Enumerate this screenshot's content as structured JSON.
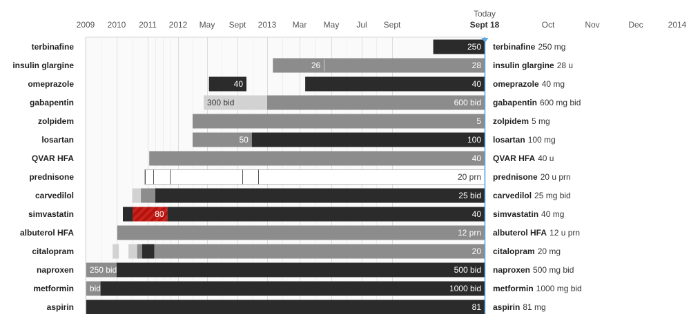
{
  "chart_data": {
    "type": "bar",
    "today": {
      "top_label": "Today",
      "date_label": "Sept 18"
    },
    "x_ticks": [
      "2009",
      "2010",
      "2011",
      "2012",
      "May",
      "Sept",
      "2013",
      "Mar",
      "May",
      "Jul",
      "Sept",
      "Oct",
      "Nov",
      "Dec",
      "2014"
    ],
    "colors": {
      "dark": "#2b2b2b",
      "mid": "#8c8c8c",
      "light": "#d2d2d2",
      "alert": "#b3120f",
      "today_line": "#5aa9e6"
    },
    "medications": [
      {
        "name": "terbinafine",
        "current_dose": "250 mg",
        "segments": [
          {
            "start": 2013.69,
            "end": 2013.715,
            "shade": "dark",
            "label": "250"
          }
        ]
      },
      {
        "name": "insulin glargine",
        "current_dose": "28 u",
        "segments": [
          {
            "start": 2013.03,
            "end": 2013.3,
            "shade": "mid",
            "label": "26"
          },
          {
            "start": 2013.3,
            "end": 2013.715,
            "shade": "mid",
            "label": "28"
          }
        ]
      },
      {
        "name": "omeprazole",
        "current_dose": "40 mg",
        "segments": [
          {
            "start": 2012.36,
            "end": 2012.77,
            "shade": "dark",
            "label": "40"
          },
          {
            "start": 2013.2,
            "end": 2013.715,
            "shade": "dark",
            "label": "40"
          }
        ]
      },
      {
        "name": "gabapentin",
        "current_dose": "600 mg bid",
        "segments": [
          {
            "start": 2012.3,
            "end": 2012.65,
            "shade": "light",
            "label": "300 bid"
          },
          {
            "start": 2012.65,
            "end": 2013.0,
            "shade": "light",
            "label": ""
          },
          {
            "start": 2013.0,
            "end": 2013.715,
            "shade": "mid",
            "label": "600 bid"
          }
        ]
      },
      {
        "name": "zolpidem",
        "current_dose": "5 mg",
        "segments": [
          {
            "start": 2012.17,
            "end": 2013.715,
            "shade": "mid",
            "label": "5"
          }
        ]
      },
      {
        "name": "losartan",
        "current_dose": "100 mg",
        "segments": [
          {
            "start": 2012.17,
            "end": 2012.83,
            "shade": "mid",
            "label": "50"
          },
          {
            "start": 2012.83,
            "end": 2013.715,
            "shade": "dark",
            "label": "100"
          }
        ]
      },
      {
        "name": "QVAR HFA",
        "current_dose": "40 u",
        "segments": [
          {
            "start": 2011.05,
            "end": 2013.715,
            "shade": "mid",
            "label": "40"
          }
        ]
      },
      {
        "name": "prednisone",
        "current_dose": "20 u prn",
        "segments": [
          {
            "start": 2010.9,
            "end": 2013.715,
            "shade": "prn",
            "label": "20 prn"
          }
        ],
        "marks": [
          2010.92,
          2011.18,
          2011.72,
          2012.72,
          2012.9
        ]
      },
      {
        "name": "carvedilol",
        "current_dose": " 25 mg bid",
        "segments": [
          {
            "start": 2010.5,
            "end": 2010.78,
            "shade": "light",
            "label": ""
          },
          {
            "start": 2010.78,
            "end": 2011.25,
            "shade": "mid",
            "label": ""
          },
          {
            "start": 2011.25,
            "end": 2013.715,
            "shade": "dark",
            "label": "25 bid"
          }
        ]
      },
      {
        "name": "simvastatin",
        "current_dose": "40 mg",
        "segments": [
          {
            "start": 2010.2,
            "end": 2010.52,
            "shade": "dark",
            "label": ""
          },
          {
            "start": 2010.52,
            "end": 2011.65,
            "shade": "alert",
            "label": "80"
          },
          {
            "start": 2011.65,
            "end": 2013.715,
            "shade": "dark",
            "label": "40"
          }
        ]
      },
      {
        "name": "albuterol HFA",
        "current_dose": "12 u prn",
        "segments": [
          {
            "start": 2010.02,
            "end": 2013.715,
            "shade": "mid",
            "label": "12 prn"
          }
        ]
      },
      {
        "name": "citalopram",
        "current_dose": "20 mg",
        "segments": [
          {
            "start": 2009.87,
            "end": 2010.07,
            "shade": "light",
            "label": ""
          },
          {
            "start": 2010.38,
            "end": 2010.66,
            "shade": "light",
            "label": ""
          },
          {
            "start": 2010.66,
            "end": 2010.82,
            "shade": "mid",
            "label": ""
          },
          {
            "start": 2010.82,
            "end": 2011.22,
            "shade": "dark",
            "label": ""
          },
          {
            "start": 2011.22,
            "end": 2013.715,
            "shade": "mid",
            "label": "20"
          }
        ]
      },
      {
        "name": "naproxen",
        "current_dose": "500 mg bid",
        "segments": [
          {
            "start": 2009.02,
            "end": 2010.0,
            "shade": "mid",
            "label": "250 bid"
          },
          {
            "start": 2010.0,
            "end": 2013.715,
            "shade": "dark",
            "label": "500 bid"
          }
        ]
      },
      {
        "name": "metformin",
        "current_dose": "1000 mg bid",
        "segments": [
          {
            "start": 2009.02,
            "end": 2009.48,
            "shade": "mid",
            "label": "bid"
          },
          {
            "start": 2009.48,
            "end": 2013.715,
            "shade": "dark",
            "label": "1000 bid"
          }
        ]
      },
      {
        "name": "aspirin",
        "current_dose": "81 mg",
        "segments": [
          {
            "start": 2009.02,
            "end": 2013.715,
            "shade": "dark",
            "label": "81"
          }
        ]
      }
    ]
  }
}
